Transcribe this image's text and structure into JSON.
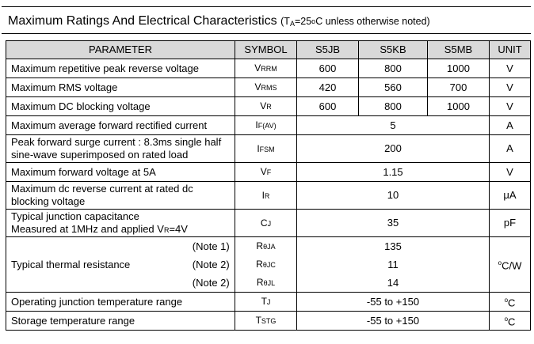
{
  "title": {
    "main": "Maximum Ratings And Electrical Characteristics",
    "cond_open": "(T",
    "cond_sub": "A",
    "cond_eq": "=25",
    "cond_deg": "o",
    "cond_rest": "C unless otherwise noted)"
  },
  "headers": [
    "PARAMETER",
    "SYMBOL",
    "S5JB",
    "S5KB",
    "S5MB",
    "UNIT"
  ],
  "rows": [
    {
      "param": "Maximum repetitive peak reverse voltage",
      "sym_main": "V",
      "sym_sub": "RRM",
      "v1": "600",
      "v2": "800",
      "v3": "1000",
      "unit": "V"
    },
    {
      "param": "Maximum RMS voltage",
      "sym_main": "V",
      "sym_sub": "RMS",
      "v1": "420",
      "v2": "560",
      "v3": "700",
      "unit": "V"
    },
    {
      "param": "Maximum DC blocking voltage",
      "sym_main": "V",
      "sym_sub": "R",
      "v1": "600",
      "v2": "800",
      "v3": "1000",
      "unit": "V"
    },
    {
      "param": "Maximum average forward rectified current",
      "sym_main": "I",
      "sym_sub": "F(AV)",
      "value": "5",
      "unit": "A"
    },
    {
      "param_l1": "Peak forward surge current : 8.3ms single half",
      "param_l2": "sine-wave superimposed on rated load",
      "sym_main": "I",
      "sym_sub": "FSM",
      "value": "200",
      "unit": "A"
    },
    {
      "param": "Maximum forward voltage at 5A",
      "sym_main": "V",
      "sym_sub": "F",
      "value": "1.15",
      "unit": "V"
    },
    {
      "param_l1": "Maximum dc reverse current at rated dc",
      "param_l2": "blocking voltage",
      "sym_main": "I",
      "sym_sub": "R",
      "value": "10",
      "unit": "μA"
    },
    {
      "param_l1": "Typical junction capacitance",
      "param_l2_a": "Measured at 1MHz and applied V",
      "param_l2_sub": "R",
      "param_l2_b": "=4V",
      "sym_main": "C",
      "sym_sub": "J",
      "value": "35",
      "unit": "pF"
    }
  ],
  "thermal": {
    "param": "Typical thermal resistance",
    "unit": "oC/W",
    "items": [
      {
        "note": "(Note 1)",
        "sym_main": "R",
        "sym_sub": "θJA",
        "value": "135"
      },
      {
        "note": "(Note 2)",
        "sym_main": "R",
        "sym_sub": "θJC",
        "value": "11"
      },
      {
        "note": "(Note 2)",
        "sym_main": "R",
        "sym_sub": "θJL",
        "value": "14"
      }
    ]
  },
  "tail": [
    {
      "param": "Operating junction temperature range",
      "sym_main": "T",
      "sym_sub": "J",
      "value": "-55 to +150",
      "unit": "oC"
    },
    {
      "param": "Storage temperature range",
      "sym_main": "T",
      "sym_sub": "STG",
      "value": "-55 to +150",
      "unit": "oC"
    }
  ]
}
